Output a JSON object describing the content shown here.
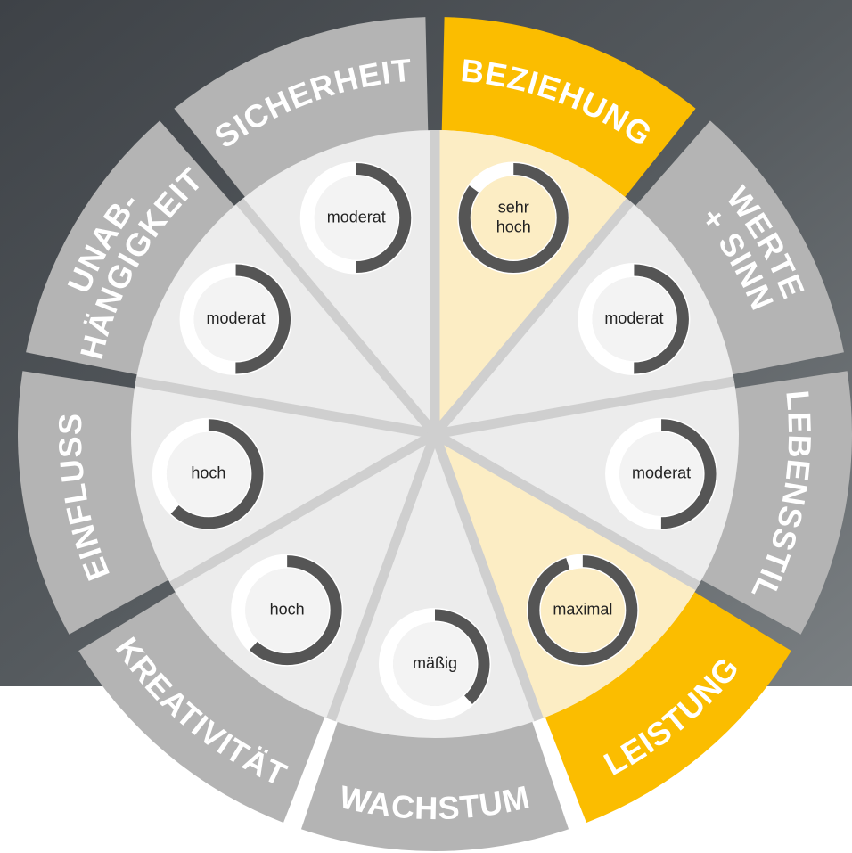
{
  "segments": [
    {
      "label": [
        "BEZIEHUNG"
      ],
      "level_text": [
        "sehr",
        "hoch"
      ],
      "level": 85,
      "highlighted": true
    },
    {
      "label": [
        "WERTE",
        "+ SINN"
      ],
      "level_text": [
        "moderat"
      ],
      "level": 50,
      "highlighted": false
    },
    {
      "label": [
        "LEBENSSTIL"
      ],
      "level_text": [
        "moderat"
      ],
      "level": 50,
      "highlighted": false
    },
    {
      "label": [
        "LEISTUNG"
      ],
      "level_text": [
        "maximal"
      ],
      "level": 95,
      "highlighted": true
    },
    {
      "label": [
        "WACHSTUM"
      ],
      "level_text": [
        "mäßig"
      ],
      "level": 38,
      "highlighted": false
    },
    {
      "label": [
        "KREATIVITÄT"
      ],
      "level_text": [
        "hoch"
      ],
      "level": 62,
      "highlighted": false
    },
    {
      "label": [
        "EINFLUSS"
      ],
      "level_text": [
        "hoch"
      ],
      "level": 62,
      "highlighted": false
    },
    {
      "label": [
        "UNAB-",
        "HÄNGIGKEIT"
      ],
      "level_text": [
        "moderat"
      ],
      "level": 50,
      "highlighted": false
    },
    {
      "label": [
        "SICHERHEIT"
      ],
      "level_text": [
        "moderat"
      ],
      "level": 50,
      "highlighted": false
    }
  ]
}
